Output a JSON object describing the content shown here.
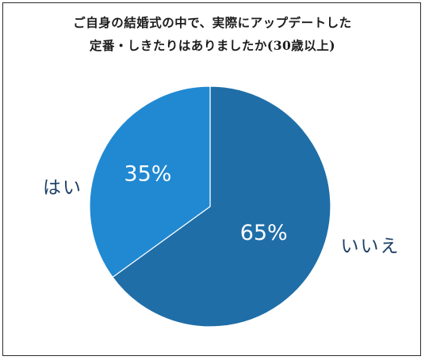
{
  "chart_data": {
    "type": "pie",
    "title_lines": [
      "ご自身の結婚式の中で、実際にアップデートした",
      "定番・しきたりはありましたか(30歳以上)"
    ],
    "slices": [
      {
        "label": "はい",
        "value": 35,
        "value_label": "35%",
        "color": "#2189d2"
      },
      {
        "label": "いいえ",
        "value": 65,
        "value_label": "65%",
        "color": "#1f6ea8"
      }
    ],
    "legend": "none",
    "grid": false
  }
}
